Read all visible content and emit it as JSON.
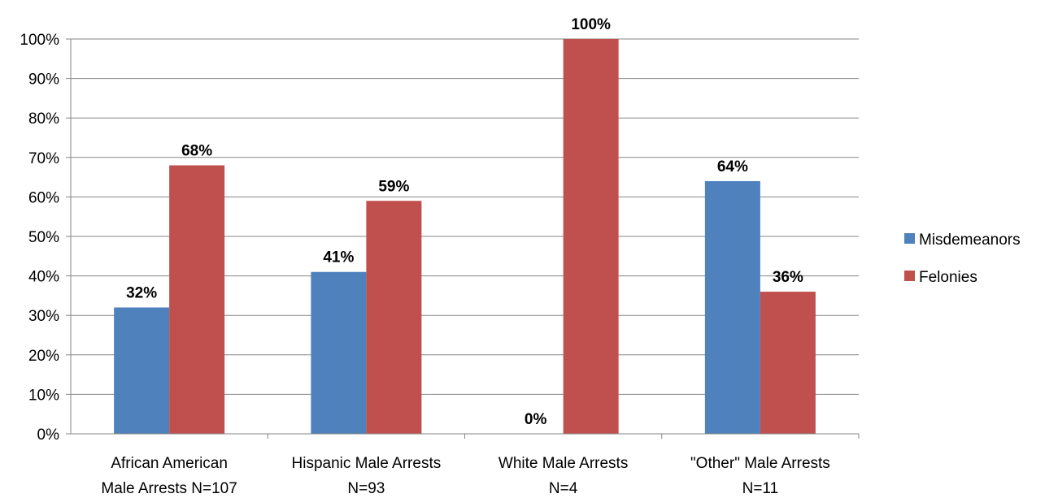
{
  "chart_data": {
    "type": "bar",
    "categories": [
      [
        "African American",
        "Male Arrests N=107"
      ],
      [
        "Hispanic Male Arrests",
        "N=93"
      ],
      [
        "White Male Arrests",
        "N=4"
      ],
      [
        "\"Other\" Male Arrests",
        "N=11"
      ]
    ],
    "series": [
      {
        "name": "Misdemeanors",
        "color": "#4F81BD",
        "values": [
          32,
          41,
          0,
          64
        ],
        "labels": [
          "32%",
          "41%",
          "0%",
          "64%"
        ]
      },
      {
        "name": "Felonies",
        "color": "#C0504D",
        "values": [
          68,
          59,
          100,
          36
        ],
        "labels": [
          "68%",
          "59%",
          "100%",
          "36%"
        ]
      }
    ],
    "ylim": [
      0,
      100
    ],
    "yticks": [
      "0%",
      "10%",
      "20%",
      "30%",
      "40%",
      "50%",
      "60%",
      "70%",
      "80%",
      "90%",
      "100%"
    ],
    "grid": true,
    "legend_position": "right"
  }
}
